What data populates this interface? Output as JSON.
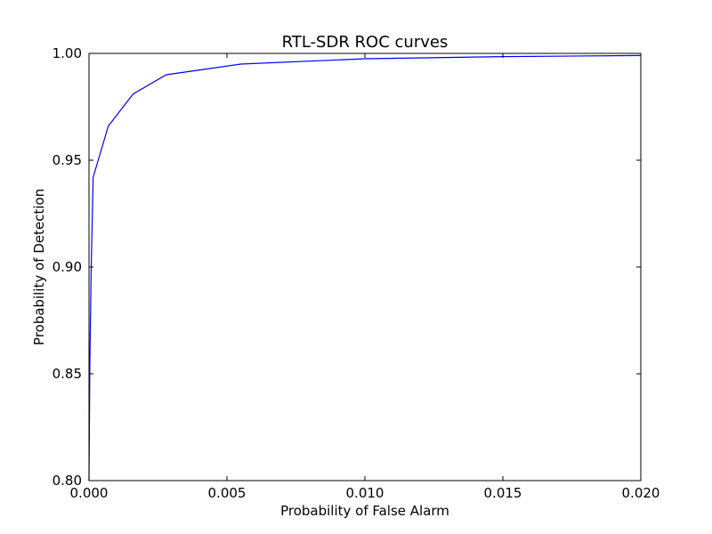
{
  "chart_data": {
    "type": "line",
    "title": "RTL-SDR ROC curves",
    "xlabel": "Probability of False Alarm",
    "ylabel": "Probability of Detection",
    "xlim": [
      0.0,
      0.02
    ],
    "ylim": [
      0.8,
      1.0
    ],
    "grid": false,
    "xticks": [
      0.0,
      0.005,
      0.01,
      0.015,
      0.02
    ],
    "xtick_labels": [
      "0.000",
      "0.005",
      "0.010",
      "0.015",
      "0.020"
    ],
    "yticks": [
      0.8,
      0.85,
      0.9,
      0.95,
      1.0
    ],
    "ytick_labels": [
      "0.80",
      "0.85",
      "0.90",
      "0.95",
      "1.00"
    ],
    "series": [
      {
        "color": "#0000ff",
        "x": [
          0.0,
          3e-05,
          8e-05,
          0.00015,
          0.0007,
          0.0016,
          0.0028,
          0.0055,
          0.01,
          0.015,
          0.02
        ],
        "y": [
          0.8,
          0.855,
          0.9,
          0.942,
          0.966,
          0.981,
          0.99,
          0.995,
          0.9975,
          0.9985,
          0.999
        ]
      }
    ]
  }
}
